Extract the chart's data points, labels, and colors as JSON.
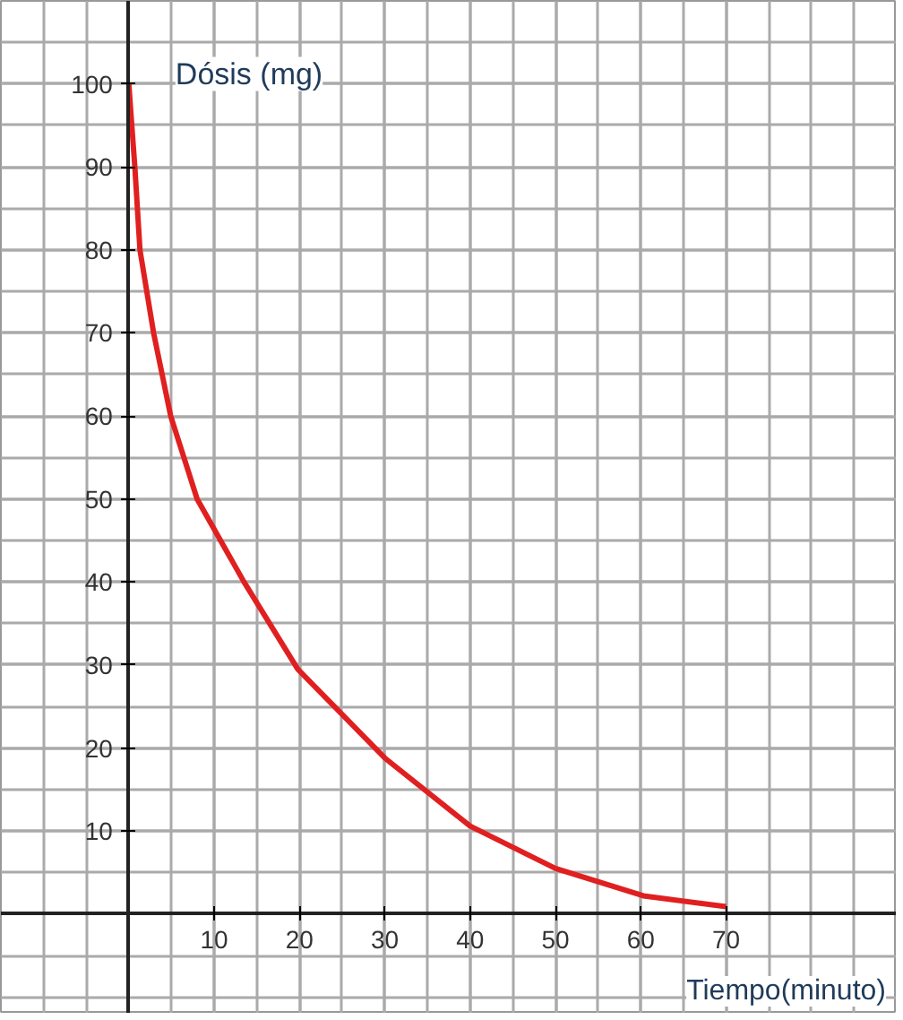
{
  "chart_data": {
    "type": "line",
    "xlabel": "Tiempo(minuto)",
    "ylabel": "Dósis (mg)",
    "x": [
      0,
      0.2,
      0.7,
      1.3,
      2.9,
      4.9,
      8,
      13.5,
      19.8,
      30,
      40,
      50,
      60.3,
      70
    ],
    "series": [
      {
        "color": "#e02020",
        "values": [
          100,
          97,
          90,
          80,
          70,
          60,
          50,
          40,
          29.5,
          18.8,
          10.6,
          5.5,
          2.2,
          0.9
        ]
      }
    ],
    "xlim": [
      -15,
      90
    ],
    "ylim": [
      -12,
      110
    ],
    "xticks": [
      10,
      20,
      30,
      40,
      50,
      60,
      70
    ],
    "yticks": [
      10,
      20,
      30,
      40,
      50,
      60,
      70,
      80,
      90,
      100
    ],
    "grid": true,
    "marker": "none",
    "line_style": "solid"
  }
}
